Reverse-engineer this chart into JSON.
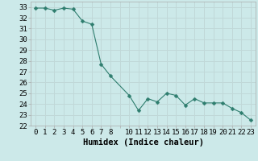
{
  "x": [
    0,
    1,
    2,
    3,
    4,
    5,
    6,
    7,
    8,
    10,
    11,
    12,
    13,
    14,
    15,
    16,
    17,
    18,
    19,
    20,
    21,
    22,
    23
  ],
  "y": [
    32.9,
    32.9,
    32.7,
    32.9,
    32.8,
    31.7,
    31.4,
    27.7,
    26.6,
    24.8,
    23.4,
    24.5,
    24.2,
    25.0,
    24.8,
    23.9,
    24.5,
    24.1,
    24.1,
    24.1,
    23.6,
    23.2,
    22.5
  ],
  "line_color": "#2e7d6e",
  "marker": "D",
  "marker_size": 2.5,
  "bg_color": "#cce9e9",
  "grid_color": "#c0d8d8",
  "xlabel": "Humidex (Indice chaleur)",
  "ylabel_ticks": [
    22,
    23,
    24,
    25,
    26,
    27,
    28,
    29,
    30,
    31,
    32,
    33
  ],
  "xtick_labels": [
    "0",
    "1",
    "2",
    "3",
    "4",
    "5",
    "6",
    "7",
    "8",
    "",
    "10",
    "11",
    "12",
    "13",
    "14",
    "15",
    "16",
    "17",
    "18",
    "19",
    "20",
    "21",
    "22",
    "23"
  ],
  "xtick_positions": [
    0,
    1,
    2,
    3,
    4,
    5,
    6,
    7,
    8,
    9,
    10,
    11,
    12,
    13,
    14,
    15,
    16,
    17,
    18,
    19,
    20,
    21,
    22,
    23
  ],
  "xlim": [
    -0.5,
    23.5
  ],
  "ylim": [
    22.0,
    33.5
  ],
  "xlabel_fontsize": 7.5,
  "tick_fontsize": 6.5
}
